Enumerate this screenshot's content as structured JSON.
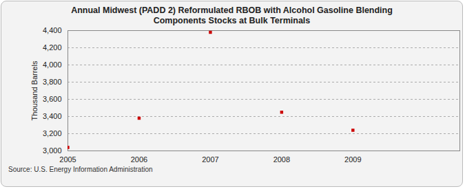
{
  "chart_data": {
    "type": "scatter",
    "title": "Annual Midwest (PADD 2) Reformulated RBOB with Alcohol Gasoline Blending Components Stocks at Bulk Terminals",
    "y_label": "Thousand Barrels",
    "source": "Source: U.S. Energy Information Administration",
    "x": [
      2005,
      2006,
      2007,
      2008,
      2009
    ],
    "values": [
      3040,
      3380,
      4380,
      3450,
      3240
    ],
    "color": "#cc0000",
    "marker": "square",
    "xlim": [
      2005,
      2010.5
    ],
    "xticks": [
      2005,
      2006,
      2007,
      2008,
      2009
    ],
    "ylim": [
      3000,
      4400
    ],
    "yticks": [
      {
        "value": 3000,
        "label": "3,000"
      },
      {
        "value": 3200,
        "label": "3,200"
      },
      {
        "value": 3400,
        "label": "3,400"
      },
      {
        "value": 3600,
        "label": "3,600"
      },
      {
        "value": 3800,
        "label": "3,800"
      },
      {
        "value": 4000,
        "label": "4,000"
      },
      {
        "value": 4200,
        "label": "4,200"
      },
      {
        "value": 4400,
        "label": "4,400"
      }
    ],
    "grid": true
  }
}
